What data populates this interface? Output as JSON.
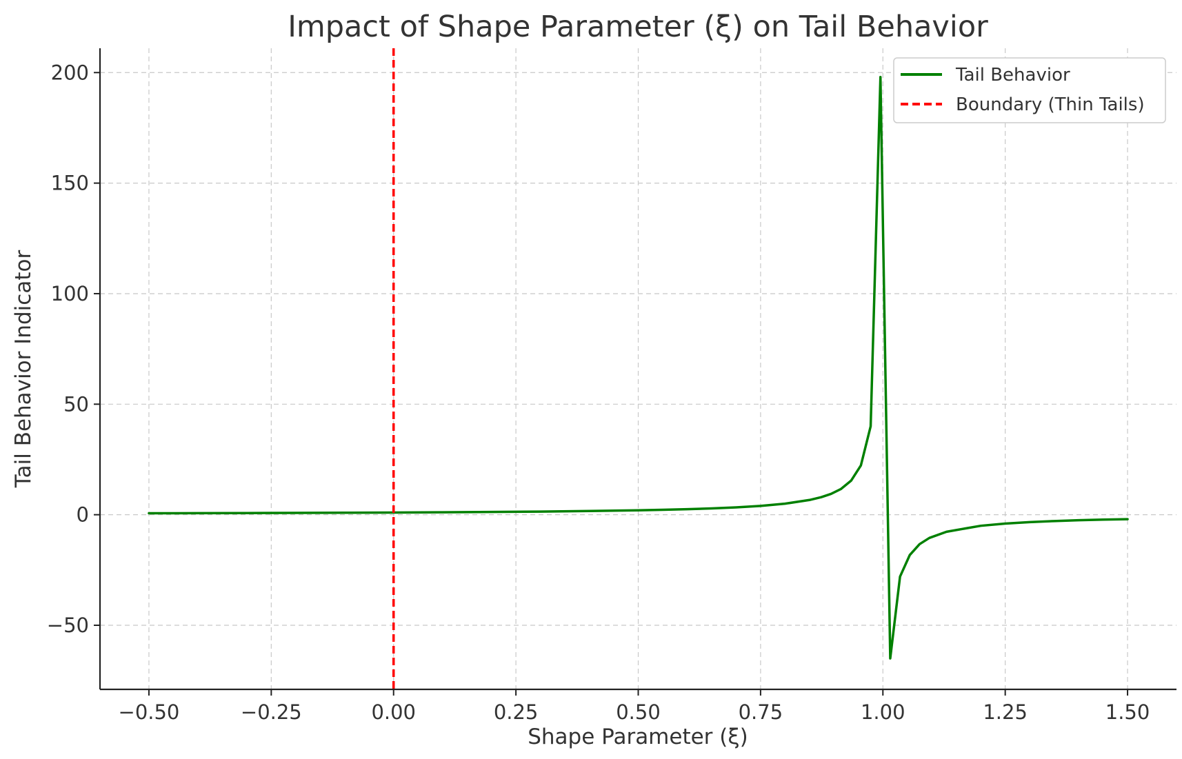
{
  "chart_data": {
    "type": "line",
    "title": "Impact of Shape Parameter (ξ) on Tail Behavior",
    "xlabel": "Shape Parameter (ξ)",
    "ylabel": "Tail Behavior Indicator",
    "xlim": [
      -0.6,
      1.6
    ],
    "ylim": [
      -79,
      211
    ],
    "xticks": [
      -0.5,
      -0.25,
      0.0,
      0.25,
      0.5,
      0.75,
      1.0,
      1.25,
      1.5
    ],
    "xtick_labels": [
      "−0.50",
      "−0.25",
      "0.00",
      "0.25",
      "0.50",
      "0.75",
      "1.00",
      "1.25",
      "1.50"
    ],
    "yticks": [
      -50,
      0,
      50,
      100,
      150,
      200
    ],
    "ytick_labels": [
      "−50",
      "0",
      "50",
      "100",
      "150",
      "200"
    ],
    "grid": true,
    "legend_position": "top-right",
    "series": [
      {
        "name": "Tail Behavior",
        "color": "#008000",
        "style": "solid",
        "points": [
          [
            -0.5,
            0.67
          ],
          [
            -0.4,
            0.71
          ],
          [
            -0.3,
            0.77
          ],
          [
            -0.2,
            0.83
          ],
          [
            -0.1,
            0.91
          ],
          [
            0.0,
            1.0
          ],
          [
            0.1,
            1.11
          ],
          [
            0.2,
            1.25
          ],
          [
            0.3,
            1.43
          ],
          [
            0.4,
            1.67
          ],
          [
            0.5,
            2.0
          ],
          [
            0.55,
            2.22
          ],
          [
            0.6,
            2.5
          ],
          [
            0.65,
            2.86
          ],
          [
            0.7,
            3.33
          ],
          [
            0.75,
            4.0
          ],
          [
            0.8,
            5.0
          ],
          [
            0.85,
            6.67
          ],
          [
            0.874,
            7.94
          ],
          [
            0.894,
            9.43
          ],
          [
            0.914,
            11.6
          ],
          [
            0.935,
            15.4
          ],
          [
            0.955,
            22.3
          ],
          [
            0.975,
            40.0
          ],
          [
            0.995,
            198.0
          ],
          [
            1.015,
            -65.0
          ],
          [
            1.035,
            -28.0
          ],
          [
            1.055,
            -18.2
          ],
          [
            1.075,
            -13.3
          ],
          [
            1.095,
            -10.5
          ],
          [
            1.13,
            -7.7
          ],
          [
            1.2,
            -5.0
          ],
          [
            1.25,
            -4.0
          ],
          [
            1.3,
            -3.33
          ],
          [
            1.35,
            -2.86
          ],
          [
            1.4,
            -2.5
          ],
          [
            1.45,
            -2.22
          ],
          [
            1.5,
            -2.0
          ]
        ]
      },
      {
        "name": "Boundary (Thin Tails)",
        "color": "#ff0000",
        "style": "dashed",
        "vline_x": 0.0
      }
    ]
  }
}
